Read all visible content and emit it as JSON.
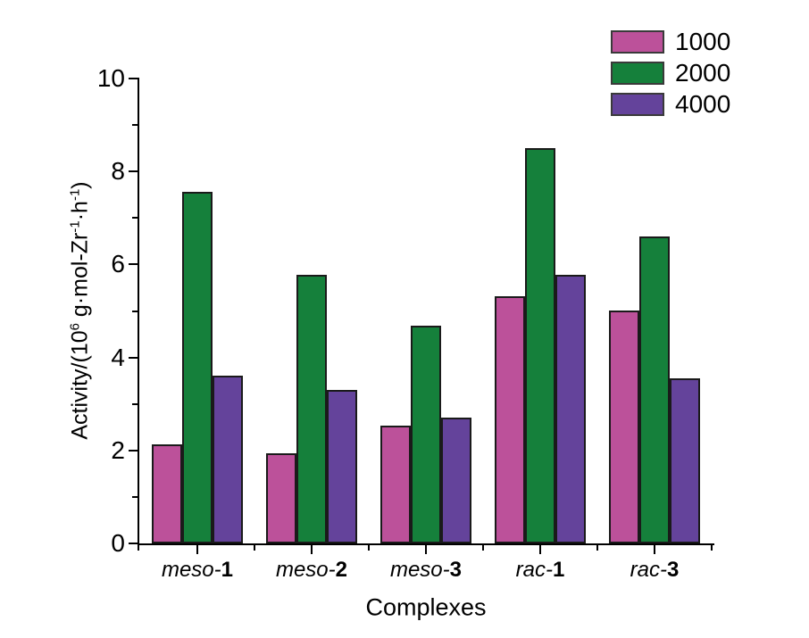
{
  "chart_data": {
    "type": "bar",
    "title": "",
    "xlabel": "Complexes",
    "ylabel_plain": "Activity/(10^6 g·mol-Zr^-1·h^-1)",
    "ylabel_parts": [
      {
        "text": "Activity/(10",
        "sup": false
      },
      {
        "text": "6",
        "sup": true
      },
      {
        "text": " g·mol-Zr",
        "sup": false
      },
      {
        "text": "-1",
        "sup": true
      },
      {
        "text": "·h",
        "sup": false
      },
      {
        "text": "-1",
        "sup": true
      },
      {
        "text": ")",
        "sup": false
      }
    ],
    "categories": [
      {
        "prefix": "meso-",
        "number": "1",
        "label": "meso-1"
      },
      {
        "prefix": "meso-",
        "number": "2",
        "label": "meso-2"
      },
      {
        "prefix": "meso-",
        "number": "3",
        "label": "meso-3"
      },
      {
        "prefix": "rac-",
        "number": "1",
        "label": "rac-1"
      },
      {
        "prefix": "rac-",
        "number": "3",
        "label": "rac-3"
      }
    ],
    "series": [
      {
        "name": "1000",
        "color": "#BC519A",
        "values": [
          2.13,
          1.93,
          2.54,
          5.31,
          5.01
        ]
      },
      {
        "name": "2000",
        "color": "#15803B",
        "values": [
          7.56,
          5.78,
          4.68,
          8.5,
          6.6
        ]
      },
      {
        "name": "4000",
        "color": "#64439B",
        "values": [
          3.6,
          3.3,
          2.7,
          5.78,
          3.55
        ]
      }
    ],
    "ylim": [
      0,
      10
    ],
    "y_major_ticks": [
      0,
      2,
      4,
      6,
      8,
      10
    ],
    "y_minor_ticks": [
      1,
      3,
      5,
      7,
      9
    ],
    "grid": false,
    "legend_position": "top-right",
    "bar_edge_color": "#1A1A1A",
    "axis_color": "#000000",
    "background": "#FFFFFF"
  }
}
